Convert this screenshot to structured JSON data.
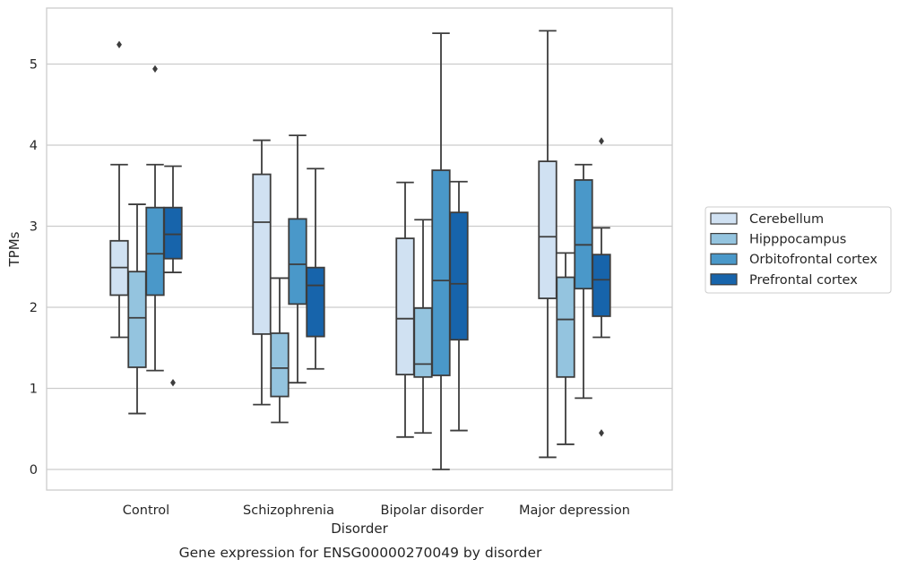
{
  "chart_data": {
    "type": "box",
    "title": "",
    "caption": "Gene expression for ENSG00000270049 by disorder",
    "xlabel": "Disorder",
    "ylabel": "TPMs",
    "ylim": [
      -0.27,
      5.7
    ],
    "yticks": [
      "0",
      "1",
      "2",
      "3",
      "4",
      "5"
    ],
    "grid": "horizontal",
    "legend_position": "right",
    "categories": [
      "Control",
      "Schizophrenia",
      "Bipolar disorder",
      "Major depression"
    ],
    "series": [
      {
        "name": "Cerebellum",
        "color": "#d0e1f2",
        "boxes": [
          {
            "whislo": 1.63,
            "q1": 2.15,
            "med": 2.49,
            "q3": 2.82,
            "whishi": 3.76,
            "fliers": [
              5.24
            ]
          },
          {
            "whislo": 0.8,
            "q1": 1.67,
            "med": 3.05,
            "q3": 3.64,
            "whishi": 4.06,
            "fliers": []
          },
          {
            "whislo": 0.4,
            "q1": 1.17,
            "med": 1.86,
            "q3": 2.85,
            "whishi": 3.54,
            "fliers": []
          },
          {
            "whislo": 0.15,
            "q1": 2.11,
            "med": 2.87,
            "q3": 3.8,
            "whishi": 5.41,
            "fliers": []
          }
        ]
      },
      {
        "name": "Hipppocampus",
        "color": "#94c4df",
        "boxes": [
          {
            "whislo": 0.69,
            "q1": 1.26,
            "med": 1.87,
            "q3": 2.44,
            "whishi": 3.27,
            "fliers": []
          },
          {
            "whislo": 0.58,
            "q1": 0.9,
            "med": 1.25,
            "q3": 1.68,
            "whishi": 2.36,
            "fliers": []
          },
          {
            "whislo": 0.45,
            "q1": 1.14,
            "med": 1.3,
            "q3": 1.99,
            "whishi": 3.08,
            "fliers": []
          },
          {
            "whislo": 0.31,
            "q1": 1.14,
            "med": 1.85,
            "q3": 2.37,
            "whishi": 2.67,
            "fliers": []
          }
        ]
      },
      {
        "name": "Orbitofrontal cortex",
        "color": "#4a98c9",
        "boxes": [
          {
            "whislo": 1.22,
            "q1": 2.15,
            "med": 2.66,
            "q3": 3.23,
            "whishi": 3.76,
            "fliers": [
              4.94
            ]
          },
          {
            "whislo": 1.07,
            "q1": 2.04,
            "med": 2.53,
            "q3": 3.09,
            "whishi": 4.12,
            "fliers": []
          },
          {
            "whislo": 0.0,
            "q1": 1.16,
            "med": 2.33,
            "q3": 3.69,
            "whishi": 5.38,
            "fliers": []
          },
          {
            "whislo": 0.88,
            "q1": 2.23,
            "med": 2.77,
            "q3": 3.57,
            "whishi": 3.76,
            "fliers": []
          }
        ]
      },
      {
        "name": "Prefrontal cortex",
        "color": "#1764ab",
        "boxes": [
          {
            "whislo": 2.43,
            "q1": 2.6,
            "med": 2.9,
            "q3": 3.23,
            "whishi": 3.74,
            "fliers": [
              1.07
            ]
          },
          {
            "whislo": 1.24,
            "q1": 1.64,
            "med": 2.27,
            "q3": 2.49,
            "whishi": 3.71,
            "fliers": []
          },
          {
            "whislo": 0.48,
            "q1": 1.6,
            "med": 2.29,
            "q3": 3.17,
            "whishi": 3.55,
            "fliers": []
          },
          {
            "whislo": 1.63,
            "q1": 1.89,
            "med": 2.34,
            "q3": 2.65,
            "whishi": 2.98,
            "fliers": [
              4.05,
              0.45
            ]
          }
        ]
      }
    ]
  }
}
